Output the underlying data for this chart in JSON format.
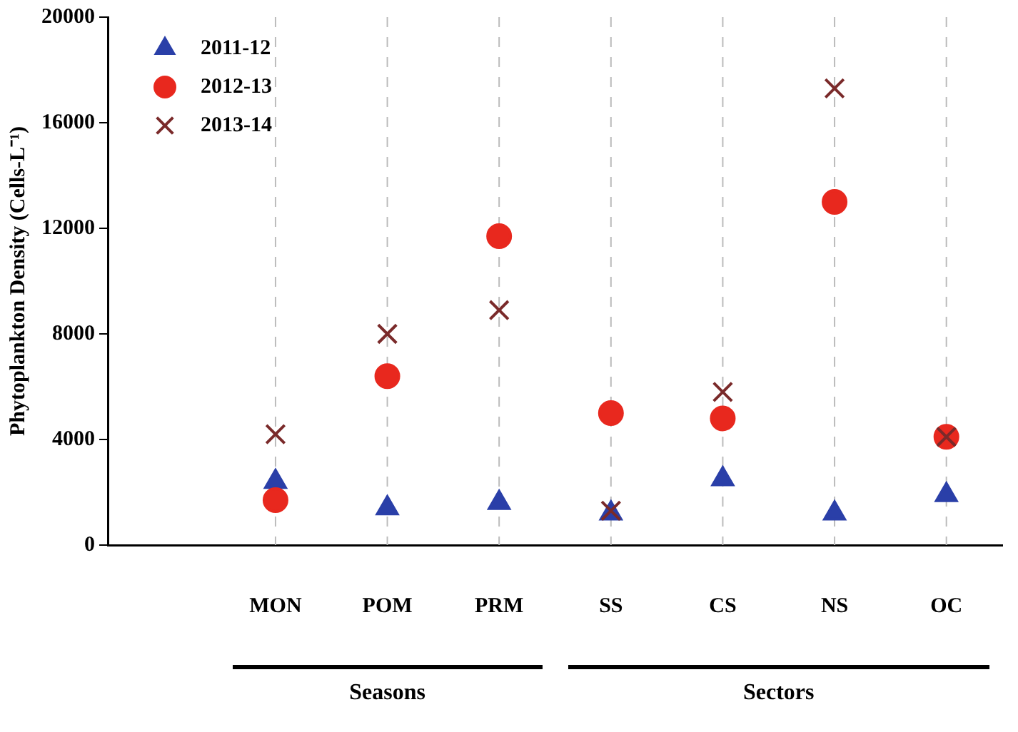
{
  "chart_data": {
    "type": "scatter",
    "ylabel": "Phytoplankton Density (Cells-L⁻¹)",
    "categories": [
      null,
      "MON",
      "POM",
      "PRM",
      "SS",
      "CS",
      "NS",
      "OC"
    ],
    "series": [
      {
        "name": "2011-12",
        "color": "#2a3fa8",
        "marker": "triangle",
        "values": [
          null,
          2400,
          1400,
          1600,
          1200,
          2500,
          1200,
          1900
        ]
      },
      {
        "name": "2012-13",
        "color": "#e8281e",
        "marker": "circle",
        "values": [
          null,
          1700,
          6400,
          11700,
          5000,
          4800,
          13000,
          4100
        ]
      },
      {
        "name": "2013-14",
        "color": "#7a2a2a",
        "marker": "cross",
        "values": [
          null,
          4200,
          8000,
          8900,
          1300,
          5800,
          17300,
          4100
        ]
      }
    ],
    "ylim": [
      0,
      20000
    ],
    "yticks": [
      0,
      4000,
      8000,
      12000,
      16000,
      20000
    ],
    "grid": "x",
    "line_style": "dashed",
    "legend": "top left",
    "annotations": [
      "Seasons",
      "Sectors"
    ]
  }
}
